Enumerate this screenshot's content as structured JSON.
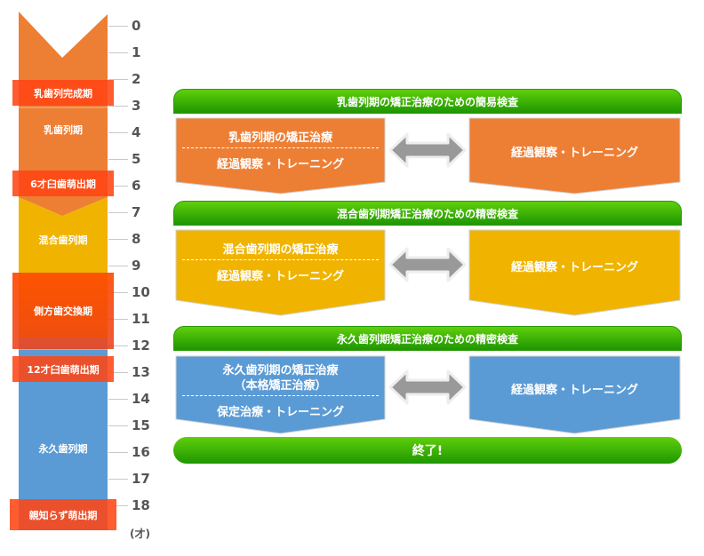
{
  "colors": {
    "orange": "#ed7f35",
    "yellow": "#f0b400",
    "blue": "#5b9bd5",
    "red": "#ff4a1a",
    "green": "#3cb406",
    "arrow": "#999999"
  },
  "ages": [
    "0",
    "1",
    "2",
    "3",
    "4",
    "5",
    "6",
    "7",
    "8",
    "9",
    "10",
    "11",
    "12",
    "13",
    "14",
    "15",
    "16",
    "17",
    "18"
  ],
  "age_unit": "(才)",
  "periods": {
    "primary": "乳歯列期",
    "mixed": "混合歯列期",
    "permanent": "永久歯列期"
  },
  "events": {
    "primary_complete": "乳歯列完成期",
    "molar6": "6才臼歯萌出期",
    "lateral": "側方歯交換期",
    "molar12": "12才臼歯萌出期",
    "wisdom": "親知らず萌出期"
  },
  "rows": [
    {
      "header": "乳歯列期の矯正治療のための簡易検査",
      "left_lines": [
        "乳歯列期の矯正治療"
      ],
      "left_bottom": "経過観察・トレーニング",
      "right": "経過観察・トレーニング"
    },
    {
      "header": "混合歯列期矯正治療のための精密検査",
      "left_lines": [
        "混合歯列期の矯正治療"
      ],
      "left_bottom": "経過観察・トレーニング",
      "right": "経過観察・トレーニング"
    },
    {
      "header": "永久歯列期矯正治療のための精密検査",
      "left_lines": [
        "永久歯列期の矯正治療",
        "（本格矯正治療）"
      ],
      "left_bottom": "保定治療・トレーニング",
      "right": "経過観察・トレーニング"
    }
  ],
  "end_label": "終了!",
  "icons": {
    "arrow": "double-arrow-icon"
  }
}
